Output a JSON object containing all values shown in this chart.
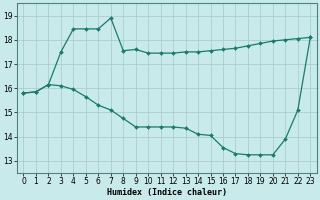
{
  "xlabel": "Humidex (Indice chaleur)",
  "background_color": "#c8eaea",
  "grid_color": "#a8c8c8",
  "line_color": "#1a7a6e",
  "xlim": [
    -0.5,
    23.5
  ],
  "ylim": [
    12.5,
    19.5
  ],
  "xticks": [
    0,
    1,
    2,
    3,
    4,
    5,
    6,
    7,
    8,
    9,
    10,
    11,
    12,
    13,
    14,
    15,
    16,
    17,
    18,
    19,
    20,
    21,
    22,
    23
  ],
  "yticks": [
    13,
    14,
    15,
    16,
    17,
    18,
    19
  ],
  "series1_x": [
    0,
    1,
    2,
    3,
    4,
    5,
    6,
    7,
    8,
    9,
    10,
    11,
    12,
    13,
    14,
    15,
    16,
    17,
    18,
    19,
    20,
    21,
    22,
    23
  ],
  "series1_y": [
    15.8,
    15.85,
    16.15,
    17.5,
    18.45,
    18.45,
    18.45,
    18.9,
    17.55,
    17.6,
    17.45,
    17.45,
    17.45,
    17.5,
    17.5,
    17.55,
    17.6,
    17.65,
    17.75,
    17.85,
    17.95,
    18.0,
    18.05,
    18.1
  ],
  "series2_x": [
    0,
    1,
    2,
    3,
    4,
    5,
    6,
    7,
    8,
    9,
    10,
    11,
    12,
    13,
    14,
    15,
    16,
    17,
    18,
    19,
    20,
    21,
    22,
    23
  ],
  "series2_y": [
    15.8,
    15.85,
    16.15,
    16.1,
    15.95,
    15.65,
    15.3,
    15.1,
    14.75,
    14.4,
    14.4,
    14.4,
    14.4,
    14.35,
    14.1,
    14.05,
    13.55,
    13.3,
    13.25,
    13.25,
    13.25,
    13.9,
    15.1,
    18.1
  ]
}
